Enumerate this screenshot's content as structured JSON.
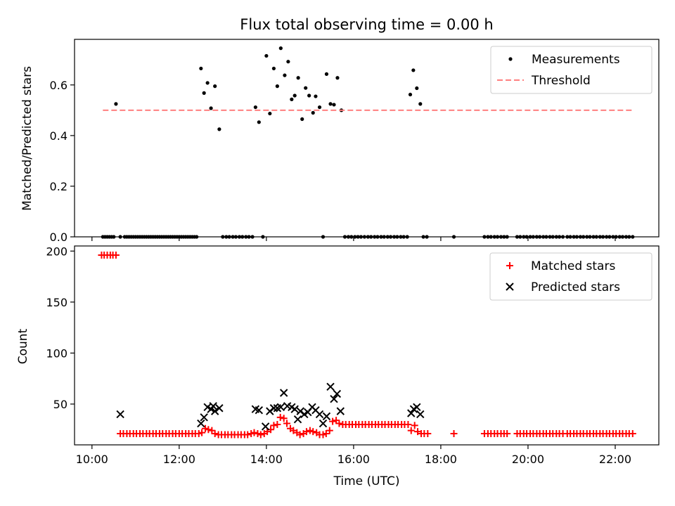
{
  "chart_data": [
    {
      "type": "scatter",
      "title": "Flux total observing time = 0.00 h",
      "xlabel": "",
      "ylabel": "Matched/Predicted stars",
      "ylim": [
        0,
        0.78
      ],
      "yticks": [
        0.0,
        0.2,
        0.4,
        0.6
      ],
      "ytick_labels": [
        "0.0",
        "0.2",
        "0.4",
        "0.6"
      ],
      "legend_position": "top-right",
      "series": [
        {
          "name": "Measurements",
          "kind": "points",
          "color": "#000000",
          "x": [
            10.25,
            10.3,
            10.35,
            10.4,
            10.45,
            10.5,
            10.55,
            10.65,
            10.75,
            10.8,
            10.85,
            10.9,
            10.95,
            11.0,
            11.05,
            11.1,
            11.15,
            11.2,
            11.25,
            11.3,
            11.35,
            11.4,
            11.45,
            11.5,
            11.55,
            11.6,
            11.65,
            11.7,
            11.75,
            11.8,
            11.85,
            11.9,
            11.95,
            12.0,
            12.05,
            12.1,
            12.15,
            12.2,
            12.25,
            12.3,
            12.35,
            12.4,
            12.5,
            12.57,
            12.65,
            12.73,
            12.82,
            12.92,
            13.0,
            13.08,
            13.15,
            13.23,
            13.3,
            13.38,
            13.45,
            13.53,
            13.6,
            13.68,
            13.75,
            13.83,
            13.92,
            14.0,
            14.08,
            14.17,
            14.25,
            14.33,
            14.42,
            14.5,
            14.58,
            14.65,
            14.73,
            14.82,
            14.9,
            14.98,
            15.07,
            15.13,
            15.22,
            15.3,
            15.38,
            15.47,
            15.55,
            15.63,
            15.72,
            15.8,
            15.88,
            15.95,
            16.03,
            16.1,
            16.17,
            16.25,
            16.33,
            16.4,
            16.48,
            16.55,
            16.63,
            16.7,
            16.78,
            16.85,
            16.93,
            17.0,
            17.08,
            17.15,
            17.23,
            17.3,
            17.37,
            17.45,
            17.53,
            17.6,
            17.68,
            18.3,
            19.0,
            19.08,
            19.15,
            19.23,
            19.3,
            19.38,
            19.45,
            19.52,
            19.75,
            19.82,
            19.9,
            19.97,
            20.05,
            20.12,
            20.2,
            20.27,
            20.35,
            20.42,
            20.5,
            20.57,
            20.65,
            20.72,
            20.8,
            20.9,
            20.97,
            21.05,
            21.12,
            21.2,
            21.27,
            21.35,
            21.42,
            21.5,
            21.57,
            21.65,
            21.72,
            21.8,
            21.87,
            21.95,
            22.02,
            22.1,
            22.17,
            22.25,
            22.32,
            22.4
          ],
          "y": [
            0,
            0,
            0,
            0,
            0,
            0,
            0.525,
            0,
            0,
            0,
            0,
            0,
            0,
            0,
            0,
            0,
            0,
            0,
            0,
            0,
            0,
            0,
            0,
            0,
            0,
            0,
            0,
            0,
            0,
            0,
            0,
            0,
            0,
            0,
            0,
            0,
            0,
            0,
            0,
            0,
            0,
            0,
            0.665,
            0.568,
            0.608,
            0.508,
            0.595,
            0.425,
            0,
            0,
            0,
            0,
            0,
            0,
            0,
            0,
            0,
            0,
            0.512,
            0.453,
            0,
            0.715,
            0.487,
            0.665,
            0.595,
            0.745,
            0.638,
            0.692,
            0.543,
            0.558,
            0.628,
            0.465,
            0.588,
            0.558,
            0.49,
            0.555,
            0.512,
            0,
            0.643,
            0.525,
            0.522,
            0.628,
            0.5,
            0,
            0,
            0,
            0,
            0,
            0,
            0,
            0,
            0,
            0,
            0,
            0,
            0,
            0,
            0,
            0,
            0,
            0,
            0,
            0,
            0.562,
            0.658,
            0.587,
            0.525,
            0,
            0,
            0,
            0,
            0,
            0,
            0,
            0,
            0,
            0,
            0,
            0,
            0,
            0,
            0,
            0,
            0,
            0,
            0,
            0,
            0,
            0,
            0,
            0,
            0,
            0,
            0,
            0,
            0,
            0,
            0,
            0,
            0,
            0,
            0,
            0,
            0,
            0,
            0,
            0,
            0,
            0,
            0,
            0,
            0,
            0,
            0
          ]
        },
        {
          "name": "Threshold",
          "kind": "dashed-line",
          "color": "#ff7f7f",
          "x": [
            10.25,
            22.4
          ],
          "y": [
            0.5,
            0.5
          ]
        }
      ]
    },
    {
      "type": "scatter",
      "title": "",
      "xlabel": "Time (UTC)",
      "ylabel": "Count",
      "xlim": [
        9.6,
        23.0
      ],
      "ylim": [
        10,
        205
      ],
      "xticks": [
        10,
        12,
        14,
        16,
        18,
        20,
        22
      ],
      "xtick_labels": [
        "10:00",
        "12:00",
        "14:00",
        "16:00",
        "18:00",
        "20:00",
        "22:00"
      ],
      "yticks": [
        50,
        100,
        150,
        200
      ],
      "ytick_labels": [
        "50",
        "100",
        "150",
        "200"
      ],
      "legend_position": "top-right",
      "series": [
        {
          "name": "Matched stars",
          "kind": "plus",
          "color": "#ff0000",
          "x": [
            10.22,
            10.28,
            10.35,
            10.42,
            10.48,
            10.55,
            10.65,
            10.72,
            10.8,
            10.87,
            10.95,
            11.02,
            11.1,
            11.17,
            11.25,
            11.32,
            11.4,
            11.47,
            11.55,
            11.62,
            11.7,
            11.77,
            11.85,
            11.92,
            12.0,
            12.07,
            12.15,
            12.22,
            12.3,
            12.37,
            12.45,
            12.52,
            12.6,
            12.67,
            12.75,
            12.82,
            12.9,
            12.97,
            13.05,
            13.12,
            13.2,
            13.27,
            13.35,
            13.42,
            13.5,
            13.57,
            13.65,
            13.72,
            13.8,
            13.87,
            13.95,
            14.02,
            14.1,
            14.17,
            14.25,
            14.32,
            14.4,
            14.47,
            14.55,
            14.62,
            14.7,
            14.77,
            14.85,
            14.92,
            15.0,
            15.07,
            15.15,
            15.22,
            15.3,
            15.37,
            15.45,
            15.52,
            15.6,
            15.67,
            15.75,
            15.82,
            15.9,
            15.97,
            16.05,
            16.12,
            16.2,
            16.27,
            16.35,
            16.42,
            16.5,
            16.57,
            16.65,
            16.72,
            16.8,
            16.87,
            16.95,
            17.02,
            17.1,
            17.17,
            17.25,
            17.32,
            17.4,
            17.47,
            17.55,
            17.62,
            17.7,
            18.3,
            19.0,
            19.08,
            19.15,
            19.23,
            19.3,
            19.38,
            19.45,
            19.52,
            19.75,
            19.82,
            19.9,
            19.97,
            20.05,
            20.12,
            20.2,
            20.27,
            20.35,
            20.42,
            20.5,
            20.57,
            20.65,
            20.72,
            20.8,
            20.9,
            20.97,
            21.05,
            21.12,
            21.2,
            21.27,
            21.35,
            21.42,
            21.5,
            21.57,
            21.65,
            21.72,
            21.8,
            21.87,
            21.95,
            22.02,
            22.1,
            22.17,
            22.25,
            22.32,
            22.4
          ],
          "y": [
            196,
            196,
            196,
            196,
            196,
            196,
            21,
            21,
            21,
            21,
            21,
            21,
            21,
            21,
            21,
            21,
            21,
            21,
            21,
            21,
            21,
            21,
            21,
            21,
            21,
            21,
            21,
            21,
            21,
            21,
            21,
            22,
            26,
            25,
            24,
            21,
            20,
            20,
            20,
            20,
            20,
            20,
            20,
            20,
            20,
            20,
            21,
            22,
            21,
            20,
            21,
            23,
            25,
            29,
            30,
            37,
            36,
            31,
            26,
            24,
            22,
            20,
            21,
            23,
            24,
            23,
            22,
            20,
            20,
            21,
            24,
            33,
            34,
            31,
            30,
            30,
            30,
            30,
            30,
            30,
            30,
            30,
            30,
            30,
            30,
            30,
            30,
            30,
            30,
            30,
            30,
            30,
            30,
            30,
            30,
            24,
            29,
            23,
            21,
            21,
            21,
            21,
            21,
            21,
            21,
            21,
            21,
            21,
            21,
            21,
            21,
            21,
            21,
            21,
            21,
            21,
            21,
            21,
            21,
            21,
            21,
            21,
            21,
            21,
            21,
            21,
            21,
            21,
            21,
            21,
            21,
            21,
            21,
            21,
            21,
            21,
            21,
            21,
            21,
            21,
            21,
            21,
            21,
            21,
            21,
            21
          ]
        },
        {
          "name": "Predicted stars",
          "kind": "x",
          "color": "#000000",
          "x": [
            10.65,
            12.5,
            12.57,
            12.65,
            12.73,
            12.78,
            12.82,
            12.92,
            13.75,
            13.83,
            13.98,
            14.08,
            14.17,
            14.25,
            14.33,
            14.4,
            14.48,
            14.58,
            14.65,
            14.72,
            14.78,
            14.87,
            14.95,
            15.05,
            15.13,
            15.22,
            15.3,
            15.38,
            15.47,
            15.55,
            15.62,
            15.7,
            17.32,
            17.38,
            17.45,
            17.53
          ],
          "y": [
            40,
            31,
            37,
            47,
            45,
            48,
            43,
            46,
            45,
            44,
            28,
            43,
            46,
            46,
            47,
            61,
            48,
            47,
            45,
            35,
            43,
            40,
            42,
            47,
            44,
            40,
            31,
            38,
            67,
            55,
            60,
            43,
            41,
            45,
            47,
            40
          ]
        }
      ]
    }
  ]
}
